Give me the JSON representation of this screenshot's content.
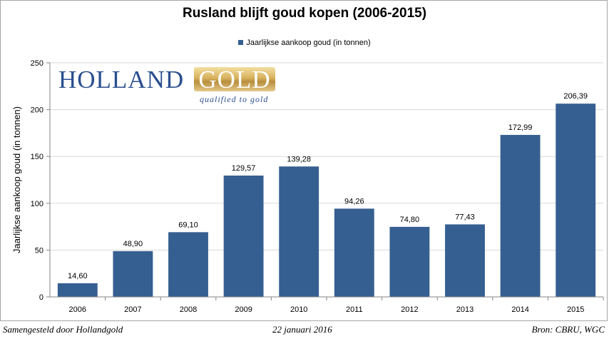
{
  "chart_data": {
    "type": "bar",
    "title": "Rusland blijft goud kopen (2006-2015)",
    "ylabel": "Jaarlijkse aankoop goud (in tonnen)",
    "xlabel": "",
    "categories": [
      "2006",
      "2007",
      "2008",
      "2009",
      "2010",
      "2011",
      "2012",
      "2013",
      "2014",
      "2015"
    ],
    "series": [
      {
        "name": "Jaarlijkse aankoop goud (in tonnen)",
        "values": [
          14.6,
          48.9,
          69.1,
          129.57,
          139.28,
          94.26,
          74.8,
          77.43,
          172.99,
          206.39
        ],
        "labels": [
          "14,60",
          "48,90",
          "69,10",
          "129,57",
          "139,28",
          "94,26",
          "74,80",
          "77,43",
          "172,99",
          "206,39"
        ]
      }
    ],
    "ylim": [
      0,
      250
    ],
    "yticks": [
      0,
      50,
      100,
      150,
      200,
      250
    ],
    "grid": true,
    "legend": "top-center",
    "bar_color": "#365f91"
  },
  "logo": {
    "word1": "HOLLAND",
    "word2": "GOLD",
    "tagline": "qualified to gold"
  },
  "footer": {
    "left": "Samengesteld door Hollandgold",
    "center": "22 januari 2016",
    "right": "Bron: CBRU, WGC"
  }
}
